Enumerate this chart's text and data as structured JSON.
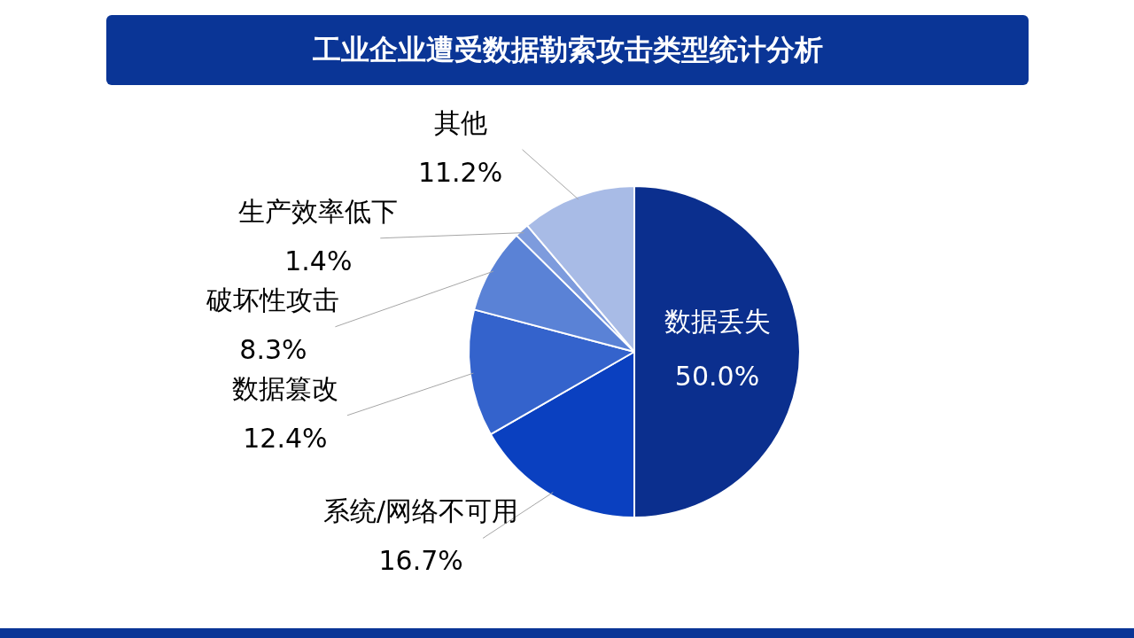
{
  "chart_data": {
    "type": "pie",
    "title": "工业企业遭受数据勒索攻击类型统计分析",
    "categories": [
      "数据丢失",
      "系统/网络不可用",
      "数据篡改",
      "破坏性攻击",
      "生产效率低下",
      "其他"
    ],
    "values": [
      50.0,
      16.7,
      12.4,
      8.3,
      1.4,
      11.2
    ],
    "colors": [
      "#0b2f8e",
      "#0a40c0",
      "#3463cc",
      "#5a82d6",
      "#7d9bdd",
      "#a8bbe6"
    ],
    "value_labels": [
      "50.0%",
      "16.7%",
      "12.4%",
      "8.3%",
      "1.4%",
      "11.2%"
    ],
    "legend": false
  }
}
